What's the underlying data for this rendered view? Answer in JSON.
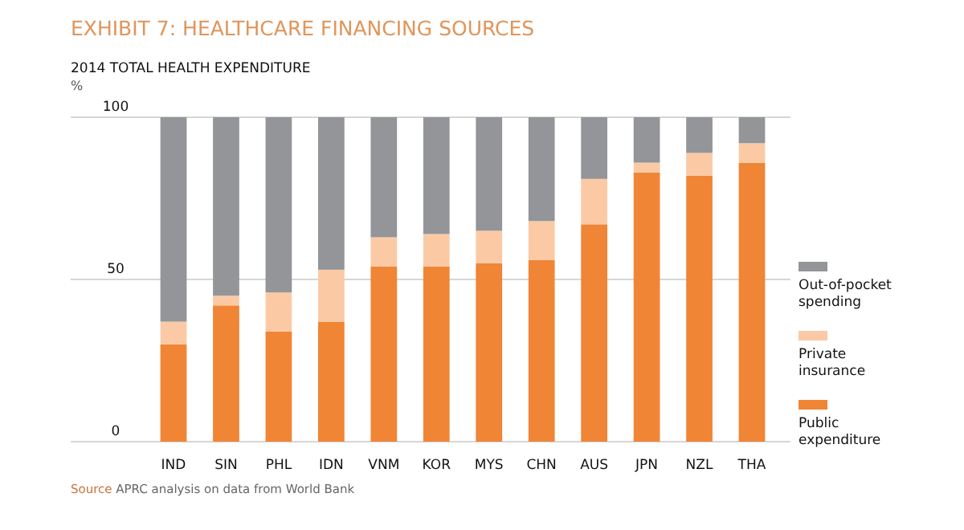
{
  "chart_data": {
    "type": "bar",
    "stacked": true,
    "title": "EXHIBIT 7: HEALTHCARE FINANCING SOURCES",
    "subtitle": "2014 TOTAL HEALTH EXPENDITURE",
    "ylabel": "%",
    "categories": [
      "IND",
      "SIN",
      "PHL",
      "IDN",
      "VNM",
      "KOR",
      "MYS",
      "CHN",
      "AUS",
      "JPN",
      "NZL",
      "THA"
    ],
    "series": [
      {
        "name": "Public expenditure",
        "color": "#f08536",
        "values": [
          30,
          42,
          34,
          37,
          54,
          54,
          55,
          56,
          67,
          83,
          82,
          86
        ]
      },
      {
        "name": "Private insurance",
        "color": "#fbcaa5",
        "values": [
          7,
          3,
          12,
          16,
          9,
          10,
          10,
          12,
          14,
          3,
          7,
          6
        ]
      },
      {
        "name": "Out-of-pocket spending",
        "color": "#939598",
        "values": [
          63,
          55,
          54,
          47,
          37,
          36,
          35,
          32,
          19,
          14,
          11,
          8
        ]
      }
    ],
    "ylim": [
      0,
      100
    ],
    "yticks": [
      0,
      50,
      100
    ],
    "grid": "y",
    "legend": "right",
    "annotations": [
      "Source APRC analysis on data from World Bank"
    ]
  }
}
